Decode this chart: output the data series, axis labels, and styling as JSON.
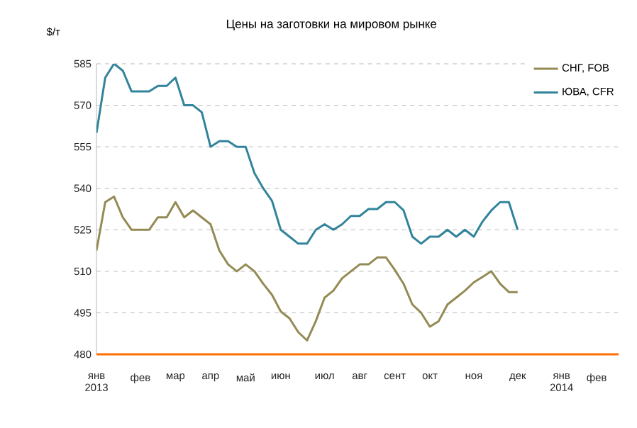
{
  "chart_data": {
    "type": "line",
    "title": "Цены на заготовки на мировом рынке",
    "ylabel": "$/т",
    "categories": [
      "янв 2013",
      null,
      null,
      null,
      null,
      "фев",
      null,
      null,
      null,
      "мар",
      null,
      null,
      null,
      "апр",
      null,
      null,
      null,
      "май",
      null,
      null,
      null,
      "июн",
      null,
      null,
      null,
      null,
      "июл",
      null,
      null,
      null,
      "авг",
      null,
      null,
      null,
      "сент",
      null,
      null,
      null,
      "окт",
      null,
      null,
      null,
      null,
      "ноя",
      null,
      null,
      null,
      null,
      "дек",
      null,
      null,
      null,
      null,
      "янв 2014",
      null,
      null,
      null,
      "фев",
      null,
      null
    ],
    "series": [
      {
        "name": "СНГ, FOB",
        "color": "#948a54",
        "values": [
          517.5,
          535,
          537,
          529.5,
          525,
          525,
          525,
          529.5,
          529.5,
          535,
          529.5,
          532,
          529.5,
          527,
          517.5,
          512.5,
          510,
          512.5,
          510,
          505.5,
          501.5,
          495.5,
          493,
          488,
          485,
          492,
          500.5,
          503,
          507.5,
          510,
          512.5,
          512.5,
          515,
          515,
          510.5,
          505.5,
          498,
          495,
          490,
          492,
          498,
          500.5,
          503,
          506,
          508,
          510,
          505.5,
          502.5,
          502.5,
          null,
          null,
          null,
          null,
          null,
          null,
          null,
          null,
          null,
          null,
          null
        ]
      },
      {
        "name": "ЮВА, CFR",
        "color": "#31849b",
        "values": [
          560,
          580,
          585,
          582.5,
          575,
          575,
          575,
          577,
          577,
          580,
          570,
          570,
          567.5,
          555,
          557,
          557,
          555,
          555,
          545.5,
          540,
          535.5,
          525,
          522.5,
          520,
          520,
          525,
          527,
          525,
          527,
          530,
          530,
          532.5,
          532.5,
          535,
          535,
          532,
          522.5,
          520,
          522.5,
          522.5,
          525,
          522.5,
          525,
          522.5,
          528,
          532,
          535,
          535,
          525,
          null,
          null,
          null,
          null,
          null,
          null,
          null,
          null,
          null,
          null,
          null
        ]
      }
    ],
    "ylim": [
      480,
      585
    ],
    "yticks": [
      480,
      495,
      510,
      525,
      540,
      555,
      570,
      585
    ],
    "grid": "y",
    "legend": "top right",
    "line_style": "solid",
    "marker": "none"
  }
}
